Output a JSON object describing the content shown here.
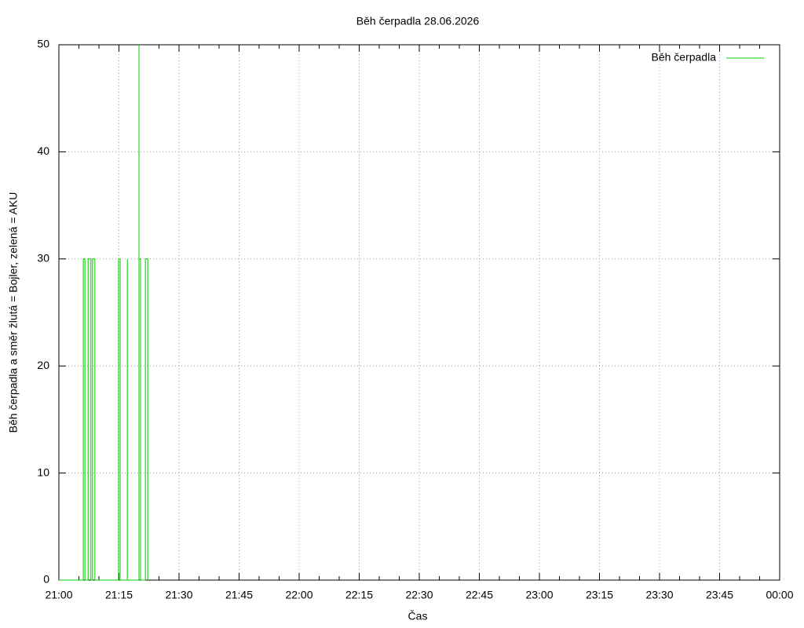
{
  "chart_data": {
    "type": "line",
    "title": "Běh čerpadla 28.06.2026",
    "x_label": "Čas",
    "y_label": "Běh čerpadla a směr žlutá = Bojler, zelená = AKU",
    "x": [
      0,
      6.1,
      6.1,
      6.5,
      6.5,
      7.3,
      7.3,
      8.0,
      8.0,
      8.4,
      8.4,
      9.0,
      9.0,
      14.9,
      14.9,
      15.3,
      15.3,
      17.1,
      17.1,
      17.1,
      20.0,
      20.0,
      20.0,
      20.4,
      20.4,
      21.6,
      21.6,
      22.2,
      22.2
    ],
    "series": [
      {
        "name": "Běh čerpadla",
        "color": "#00cc00",
        "values": [
          0,
          0,
          30,
          30,
          0,
          0,
          30,
          30,
          0,
          0,
          30,
          30,
          0,
          0,
          30,
          30,
          0,
          0,
          30,
          0,
          0,
          50,
          30,
          30,
          0,
          0,
          30,
          30,
          0
        ]
      }
    ],
    "xlim": [
      0,
      180
    ],
    "xticks": [
      {
        "value": 0,
        "label": "21:00"
      },
      {
        "value": 15,
        "label": "21:15"
      },
      {
        "value": 30,
        "label": "21:30"
      },
      {
        "value": 45,
        "label": "21:45"
      },
      {
        "value": 60,
        "label": "22:00"
      },
      {
        "value": 75,
        "label": "22:15"
      },
      {
        "value": 90,
        "label": "22:30"
      },
      {
        "value": 105,
        "label": "22:45"
      },
      {
        "value": 120,
        "label": "23:00"
      },
      {
        "value": 135,
        "label": "23:15"
      },
      {
        "value": 150,
        "label": "23:30"
      },
      {
        "value": 165,
        "label": "23:45"
      },
      {
        "value": 180,
        "label": "00:00"
      }
    ],
    "ylim": [
      0,
      50
    ],
    "yticks": [
      0,
      10,
      20,
      30,
      40,
      50
    ],
    "grid": true,
    "legend": "top-right"
  }
}
